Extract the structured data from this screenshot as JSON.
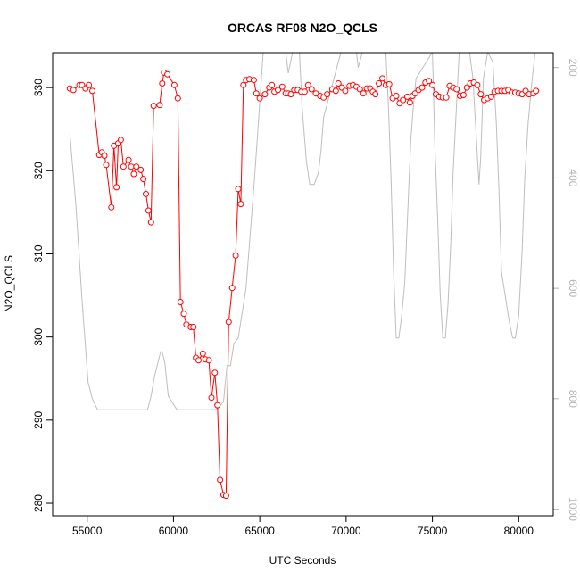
{
  "chart_data": {
    "type": "line",
    "title": "ORCAS RF08 N2O_QCLS",
    "xlabel": "UTC Seconds",
    "ylabel": "N2O_QCLS",
    "xlim": [
      53000,
      82000
    ],
    "ylim": [
      278.5,
      334.2
    ],
    "y2lim": [
      1012,
      173
    ],
    "xticks": [
      55000,
      60000,
      65000,
      70000,
      75000,
      80000
    ],
    "yticks": [
      280,
      290,
      300,
      310,
      320,
      330
    ],
    "y2ticks": [
      200,
      400,
      600,
      800,
      1000
    ],
    "grid": false,
    "legend": "none",
    "colors": {
      "primary": "#ff0000",
      "secondary": "#bebebe",
      "axis": "#000000",
      "axis2": "#b3b3b3"
    },
    "series": [
      {
        "axis": "left",
        "style": "line+points",
        "x": [
          54000,
          54200,
          54550,
          54700,
          54900,
          55100,
          55300,
          55700,
          55850,
          56000,
          56100,
          56400,
          56550,
          56700,
          56800,
          56950,
          57100,
          57400,
          57550,
          57700,
          57850,
          58100,
          58250,
          58400,
          58550,
          58700,
          58850,
          59200,
          59350,
          59450,
          59650,
          60050,
          60250,
          60400,
          60600,
          60750,
          61000,
          61150,
          61300,
          61450,
          61700,
          61850,
          62050,
          62200,
          62400,
          62550,
          62700,
          62900,
          63050,
          63200,
          63400,
          63600,
          63750,
          63900,
          64050,
          64200,
          64400,
          64650,
          64800,
          65000,
          65300,
          65550,
          65700,
          65850,
          66050,
          66300,
          66500,
          66650,
          66800,
          67000,
          67200,
          67400,
          67600,
          67800,
          68000,
          68250,
          68500,
          68700,
          68900,
          69200,
          69400,
          69550,
          69750,
          69950,
          70200,
          70400,
          70600,
          70800,
          71000,
          71200,
          71400,
          71550,
          71700,
          71900,
          72100,
          72300,
          72500,
          72700,
          72900,
          73100,
          73300,
          73550,
          73700,
          73850,
          74000,
          74200,
          74400,
          74600,
          74800,
          75000,
          75200,
          75400,
          75600,
          75800,
          76000,
          76200,
          76400,
          76600,
          76800,
          77000,
          77200,
          77400,
          77600,
          77800,
          78000,
          78200,
          78400,
          78600,
          78800,
          79000,
          79200,
          79400,
          79600,
          79800,
          80000,
          80200,
          80400,
          80600,
          80850,
          81000
        ],
        "y": [
          329.9,
          329.7,
          330.3,
          330.3,
          329.9,
          330.3,
          329.6,
          321.9,
          322.2,
          321.8,
          320.7,
          315.6,
          323.0,
          318.0,
          323.3,
          323.7,
          320.5,
          321.3,
          320.5,
          319.6,
          320.5,
          320.1,
          319.0,
          317.2,
          315.2,
          313.8,
          327.8,
          327.9,
          330.5,
          331.8,
          331.6,
          330.3,
          328.7,
          304.2,
          302.8,
          301.5,
          301.2,
          301.2,
          297.5,
          297.2,
          298.0,
          297.3,
          297.2,
          292.7,
          295.7,
          291.8,
          282.8,
          281.0,
          280.9,
          301.8,
          305.9,
          309.8,
          317.8,
          316.0,
          330.3,
          330.9,
          331.0,
          330.9,
          329.3,
          328.7,
          329.2,
          330.0,
          330.3,
          329.5,
          329.7,
          330.1,
          329.3,
          329.3,
          329.2,
          329.7,
          329.7,
          329.5,
          329.5,
          330.3,
          329.8,
          329.3,
          329.0,
          328.8,
          329.2,
          329.8,
          329.6,
          330.5,
          330.0,
          329.6,
          330.2,
          330.3,
          330.1,
          329.8,
          329.3,
          329.9,
          329.9,
          329.5,
          329.2,
          330.5,
          331.1,
          330.3,
          330.4,
          328.7,
          329.0,
          328.1,
          328.5,
          328.9,
          328.2,
          329.0,
          329.3,
          329.7,
          330.0,
          330.6,
          330.8,
          330.3,
          329.2,
          328.9,
          328.8,
          328.8,
          330.2,
          330.0,
          329.8,
          329.0,
          329.1,
          330.0,
          330.5,
          330.6,
          330.3,
          329.2,
          328.5,
          328.7,
          328.9,
          329.5,
          329.6,
          329.6,
          329.6,
          329.7,
          329.4,
          329.4,
          329.3,
          329.2,
          329.6,
          329.2,
          329.3,
          329.6
        ]
      },
      {
        "axis": "right",
        "style": "line",
        "x": [
          54000,
          54350,
          54700,
          55050,
          55300,
          55600,
          56200,
          57000,
          57800,
          58500,
          58700,
          58900,
          59100,
          59250,
          59350,
          59500,
          59700,
          60200,
          61000,
          61600,
          62100,
          62400,
          62650,
          62900,
          63100,
          63300,
          63500,
          63750,
          64200,
          64700,
          65200,
          65400,
          65450,
          66400,
          66500,
          66650,
          66900,
          67000,
          67100,
          67300,
          67450,
          67700,
          67900,
          68150,
          68400,
          68550,
          68700,
          69700,
          70300,
          70600,
          70700,
          70950,
          71100,
          72300,
          72450,
          72600,
          72750,
          72900,
          73050,
          73200,
          73400,
          73600,
          73750,
          73900,
          74050,
          75000,
          75150,
          75300,
          75450,
          75600,
          75750,
          75900,
          76050,
          76200,
          76550,
          76950,
          77150,
          77350,
          77550,
          77700,
          77800,
          77950,
          78200,
          78500,
          78700,
          78850,
          79000,
          79250,
          79450,
          79650,
          79800,
          80000,
          80200,
          80350,
          80550,
          80750,
          80950
        ],
        "y": [
          320,
          450,
          620,
          770,
          800,
          820,
          820,
          820,
          820,
          820,
          795,
          760,
          735,
          715,
          715,
          735,
          795,
          820,
          820,
          820,
          820,
          820,
          815,
          805,
          740,
          740,
          700,
          690,
          600,
          400,
          172,
          172,
          172,
          172,
          172,
          210,
          172,
          172,
          172,
          172,
          270,
          370,
          412,
          412,
          390,
          350,
          290,
          172,
          172,
          172,
          200,
          172,
          172,
          172,
          270,
          400,
          570,
          690,
          690,
          655,
          590,
          440,
          330,
          270,
          220,
          172,
          350,
          470,
          610,
          690,
          690,
          630,
          530,
          390,
          172,
          172,
          172,
          220,
          330,
          412,
          360,
          220,
          172,
          190,
          300,
          420,
          570,
          620,
          660,
          690,
          690,
          650,
          530,
          400,
          300,
          230,
          172
        ]
      }
    ]
  }
}
